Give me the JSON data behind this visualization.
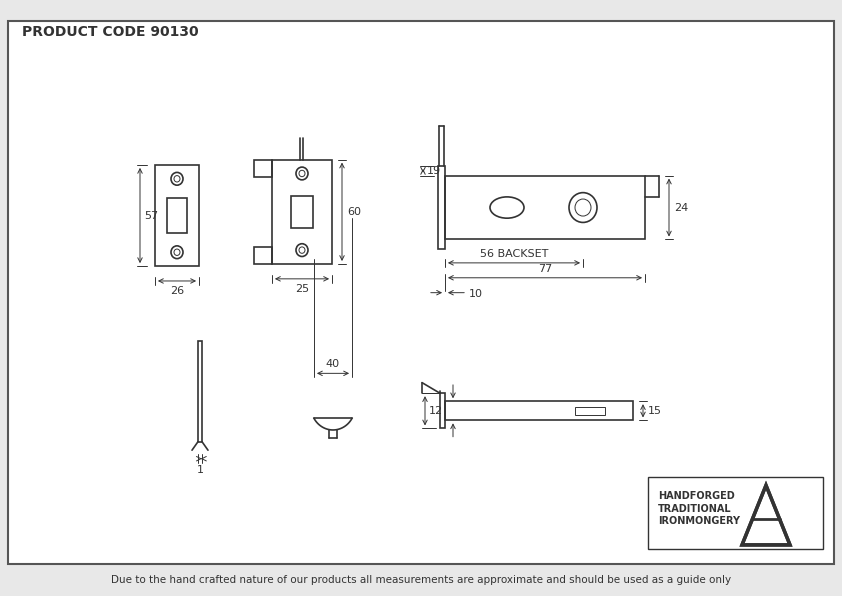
{
  "title": "PRODUCT CODE 90130",
  "footer": "Due to the hand crafted nature of our products all measurements are approximate and should be used as a guide only",
  "brand_text_line1": "HANDFORGED",
  "brand_text_line2": "TRADITIONAL",
  "brand_text_line3": "IRONMONGERY",
  "bg_color": "#e8e8e8",
  "drawing_bg": "#ffffff",
  "line_color": "#333333",
  "border_color": "#555555"
}
